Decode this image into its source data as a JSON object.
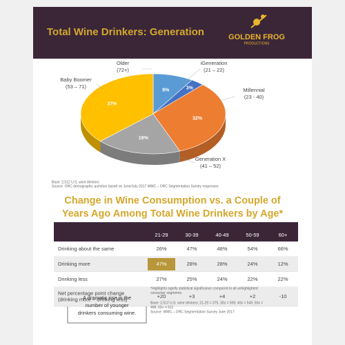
{
  "header": {
    "title": "Total Wine Drinkers: Generation",
    "logo": [
      "GOLDEN FROG",
      "PRODUCTIONS"
    ]
  },
  "chart_data": {
    "type": "pie",
    "categories": [
      "Older",
      "iGeneration",
      "Millennial",
      "Generation X",
      "Baby Boomer"
    ],
    "ranges": [
      "(72+)",
      "(21 – 22)",
      "(23 - 40)",
      "(41 – 52)",
      "(53 – 71)"
    ],
    "values": [
      9,
      3,
      32,
      19,
      37
    ],
    "value_labels": [
      "9%",
      "3%",
      "32%",
      "19%",
      "37%"
    ],
    "colors": [
      "#5b9bd5",
      "#4472c4",
      "#ed7d31",
      "#a5a5a5",
      "#ffc000"
    ]
  },
  "pie_notes": [
    "Base: 2,512 U.S. wine drinkers",
    "Source: ORC demographic question based on June/July 2017 WMC – ORC Segmentation Survey responses"
  ],
  "table": {
    "title": [
      "Change in Wine Consumption vs. a Couple of",
      "Years Ago Among Total Wine Drinkers by Age*"
    ],
    "columns": [
      "21-29",
      "30-39",
      "40-49",
      "50-59",
      "60+"
    ],
    "rows": [
      {
        "label": [
          "Drinking about the same"
        ],
        "values": [
          "26%",
          "47%",
          "48%",
          "54%",
          "66%"
        ]
      },
      {
        "label": [
          "Drinking more"
        ],
        "values": [
          "47%",
          "28%",
          "28%",
          "24%",
          "12%"
        ]
      },
      {
        "label": [
          "Drinking less"
        ],
        "values": [
          "27%",
          "25%",
          "24%",
          "22%",
          "22%"
        ]
      },
      {
        "label": [
          "Net percentage point change",
          "(drinking more – drinking less)"
        ],
        "values": [
          "+20",
          "+3",
          "+4",
          "+2",
          "-10"
        ]
      }
    ],
    "highlight": [
      [
        1,
        0
      ]
    ]
  },
  "callout": [
    "A dramatic rise in the",
    "number of younger",
    "drinkers consuming wine."
  ],
  "footnotes": [
    [
      "*Highlights signify statistical significance compared to all unhighlighted",
      "consumer segments."
    ],
    [
      "Base: 2,512 U.S. wine drinkers; 21-29 = 375, 30s = 509, 40s = 549, 50s =",
      "468, 60+ = 611",
      "Source: WMC – ORC Segmentation Survey June 2017"
    ]
  ]
}
